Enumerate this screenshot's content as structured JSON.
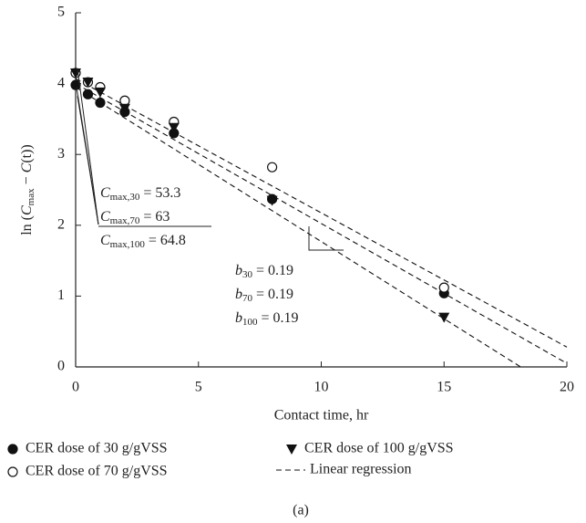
{
  "chart_data": {
    "type": "scatter",
    "x_label": "Contact time, hr",
    "y_label": {
      "prefix": "ln (",
      "symbol": "C",
      "subscript": "max",
      "rest": " − ",
      "symbol2": "C",
      "rest2": "(t)",
      "suffix": ")"
    },
    "caption": "(a)",
    "xlim": [
      0,
      20
    ],
    "xticks": [
      0,
      5,
      10,
      15,
      20
    ],
    "ylim": [
      0,
      5
    ],
    "yticks": [
      0,
      1,
      2,
      3,
      4,
      5
    ],
    "series": [
      {
        "name": "CER dose of 30 g/gVSS",
        "color": "#111",
        "marker": "filled-circle",
        "x": [
          0,
          0.5,
          1,
          2,
          4,
          8,
          15
        ],
        "values": [
          3.98,
          3.85,
          3.73,
          3.6,
          3.3,
          2.37,
          1.04
        ]
      },
      {
        "name": "CER dose of 70 g/gVSS",
        "color": "#111",
        "marker": "open-circle",
        "x": [
          0,
          0.5,
          1,
          2,
          4,
          8,
          15
        ],
        "values": [
          4.15,
          4.02,
          3.95,
          3.76,
          3.46,
          2.82,
          1.12
        ]
      },
      {
        "name": "CER dose of 100 g/gVSS",
        "color": "#111",
        "marker": "triangle",
        "x": [
          0,
          0.5,
          1,
          2,
          4,
          8,
          15
        ],
        "values": [
          4.15,
          4.02,
          3.88,
          3.65,
          3.38,
          2.35,
          0.7
        ]
      }
    ],
    "regression": {
      "name": "Linear regression",
      "color": "#111",
      "x": [
        0,
        20
      ],
      "lines": [
        [
          4.07,
          0.28
        ],
        [
          4.0,
          0.05
        ],
        [
          3.95,
          -0.41
        ]
      ]
    },
    "annotations_cmax": [
      {
        "symbol": "C",
        "subscript": "max,30",
        "text": " = 53.3"
      },
      {
        "symbol": "C",
        "subscript": "max,70",
        "text": " = 63"
      },
      {
        "symbol": "C",
        "subscript": "max,100",
        "text": " = 64.8"
      }
    ],
    "annotations_b": [
      {
        "symbol": "b",
        "subscript": "30",
        "text": " = 0.19"
      },
      {
        "symbol": "b",
        "subscript": "70",
        "text": " = 0.19"
      },
      {
        "symbol": "b",
        "subscript": "100",
        "text": " = 0.19"
      }
    ]
  }
}
